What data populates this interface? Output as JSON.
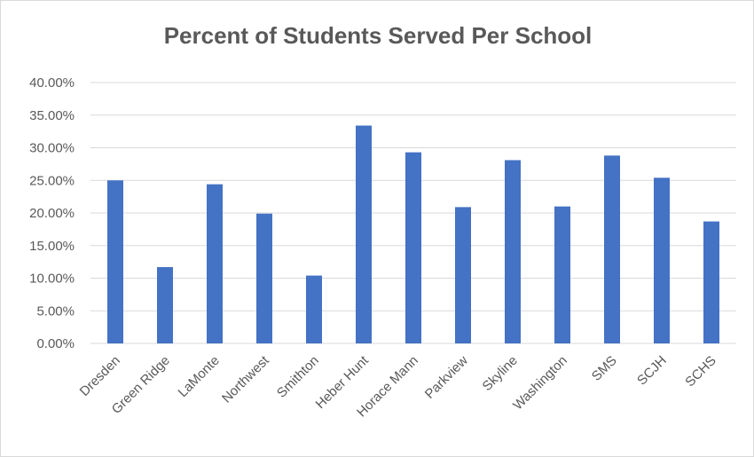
{
  "chart_data": {
    "type": "bar",
    "title": "Percent of Students Served Per School",
    "xlabel": "",
    "ylabel": "",
    "categories": [
      "Dresden",
      "Green Ridge",
      "LaMonte",
      "Northwest",
      "Smithton",
      "Heber Hunt",
      "Horace Mann",
      "Parkview",
      "Skyline",
      "Washington",
      "SMS",
      "SCJH",
      "SCHS"
    ],
    "values": [
      0.25,
      0.117,
      0.244,
      0.199,
      0.104,
      0.334,
      0.293,
      0.209,
      0.281,
      0.21,
      0.288,
      0.254,
      0.187
    ],
    "ylim": [
      0,
      0.4
    ],
    "yticks": [
      {
        "value": 0.0,
        "label": "0.00%"
      },
      {
        "value": 0.05,
        "label": "5.00%"
      },
      {
        "value": 0.1,
        "label": "10.00%"
      },
      {
        "value": 0.15,
        "label": "15.00%"
      },
      {
        "value": 0.2,
        "label": "20.00%"
      },
      {
        "value": 0.25,
        "label": "25.00%"
      },
      {
        "value": 0.3,
        "label": "30.00%"
      },
      {
        "value": 0.35,
        "label": "35.00%"
      },
      {
        "value": 0.4,
        "label": "40.00%"
      }
    ],
    "grid": true,
    "legend": "none",
    "bar_color": "#4472c4",
    "grid_color": "#d9d9d9"
  }
}
